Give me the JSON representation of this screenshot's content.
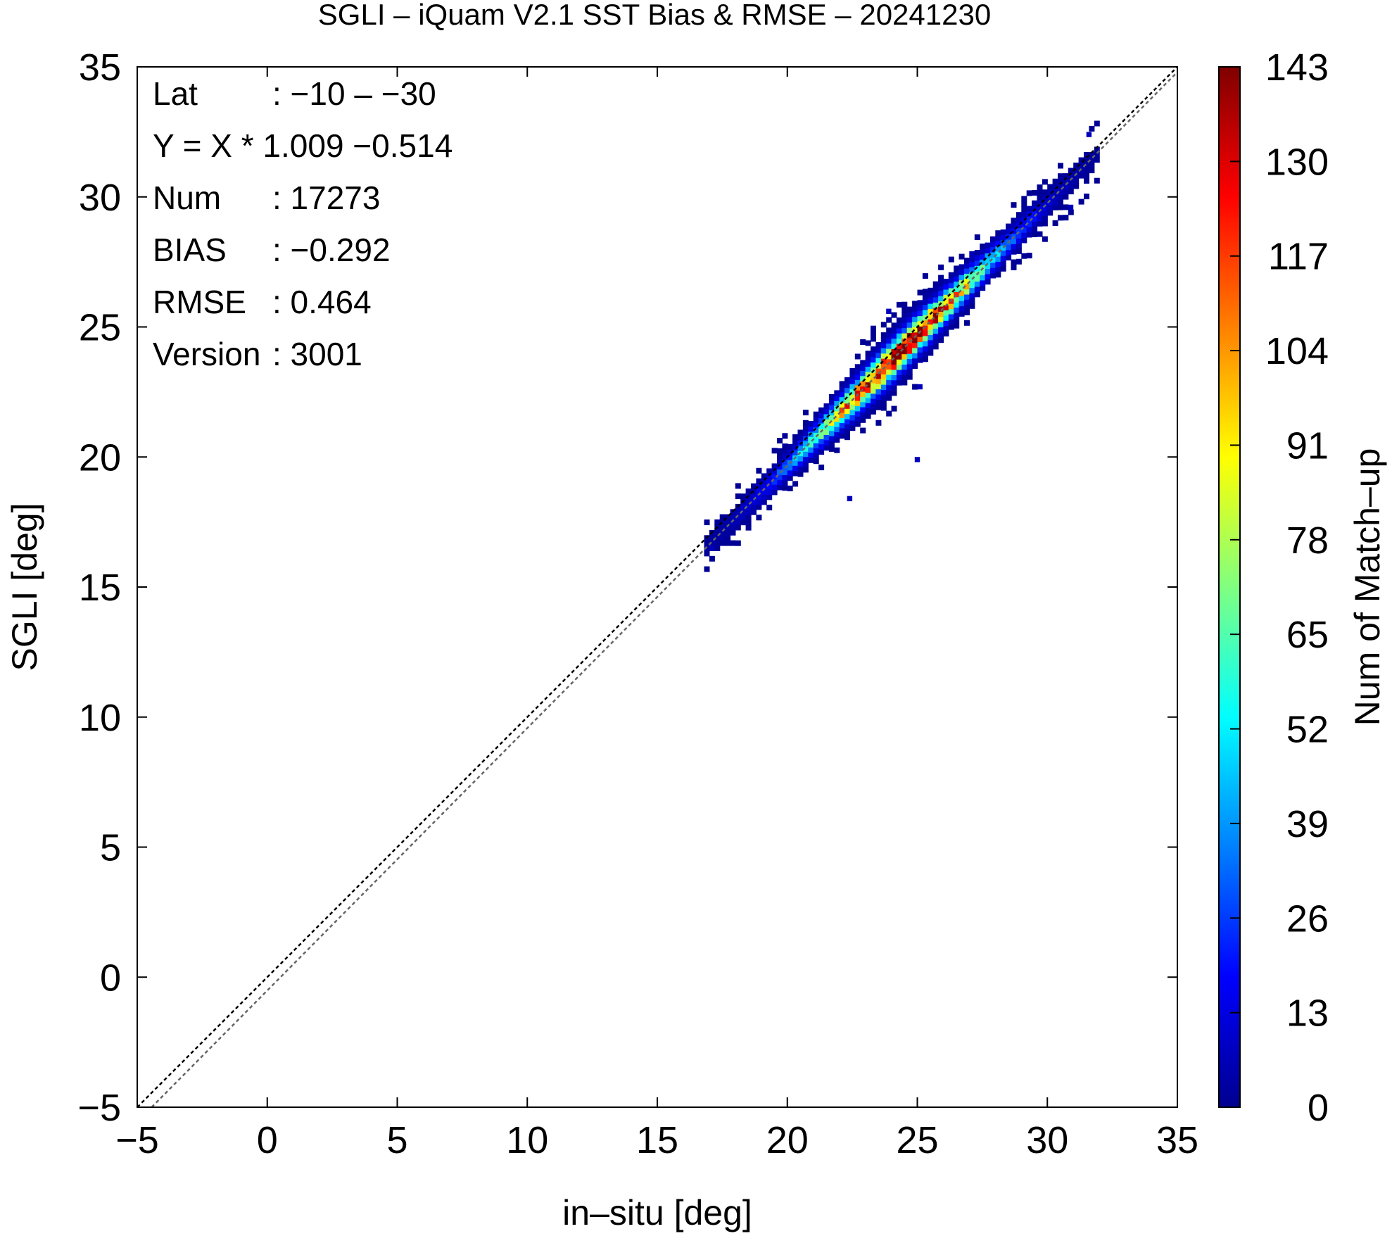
{
  "chart_data": {
    "type": "heatmap",
    "title": "SGLI – iQuam V2.1 SST Bias & RMSE  – 20241230",
    "xlabel": "in–situ [deg]",
    "ylabel": "SGLI [deg]",
    "xlim": [
      -5,
      35
    ],
    "ylim": [
      -5,
      35
    ],
    "xticks": [
      "−5",
      "0",
      "5",
      "10",
      "15",
      "20",
      "25",
      "30",
      "35"
    ],
    "yticks": [
      "−5",
      "0",
      "5",
      "10",
      "15",
      "20",
      "25",
      "30",
      "35"
    ],
    "grid": false,
    "stats": [
      {
        "label": "Lat",
        "value": ": −10 – −30"
      },
      {
        "label": "Y = X * 1.009 −0.514",
        "value": ""
      },
      {
        "label": "Num",
        "value": ": 17273"
      },
      {
        "label": "BIAS",
        "value": ": −0.292"
      },
      {
        "label": "RMSE",
        "value": ": 0.464"
      },
      {
        "label": "Version",
        "value": ": 3001"
      }
    ],
    "regression": {
      "slope": 1.009,
      "intercept": -0.514
    },
    "reference_line": {
      "slope": 1,
      "intercept": 0
    },
    "colorbar": {
      "label": "Num of Match–up",
      "min": 0,
      "max": 143,
      "ticks": [
        "0",
        "13",
        "26",
        "39",
        "52",
        "65",
        "78",
        "91",
        "104",
        "117",
        "130",
        "143"
      ]
    },
    "density": {
      "bin_size": 0.2,
      "x_range": [
        16.8,
        31.8
      ],
      "ridge_spread": 0.45,
      "peak_x": 24.2,
      "peak_count": 143,
      "outliers": [
        [
          17.0,
          16.4
        ],
        [
          31.5,
          32.3
        ],
        [
          23.8,
          25.5
        ],
        [
          25.0,
          22.6
        ],
        [
          22.3,
          18.3
        ],
        [
          27.0,
          27.7
        ],
        [
          24.9,
          19.8
        ],
        [
          30.8,
          29.5
        ]
      ]
    },
    "colors": {
      "reference_line": "#000000",
      "regression_line": "#666666",
      "colormap": [
        "#00008f",
        "#0000ff",
        "#0080ff",
        "#00ffff",
        "#80ff80",
        "#ffff00",
        "#ff8000",
        "#ff0000",
        "#800000"
      ]
    }
  }
}
